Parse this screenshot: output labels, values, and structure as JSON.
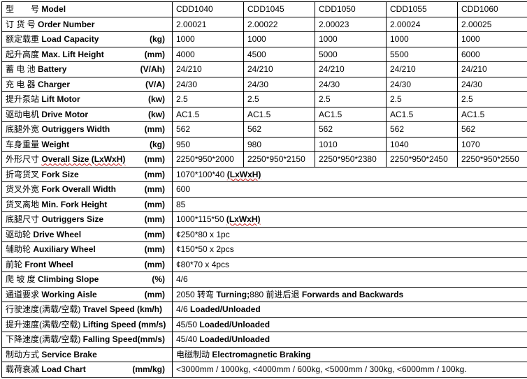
{
  "models_header": {
    "zh": "型　　号",
    "en": "Model",
    "values": [
      "CDD1040",
      "CDD1045",
      "CDD1050",
      "CDD1055",
      "CDD1060"
    ]
  },
  "rows_multi": [
    {
      "zh": "订 货 号",
      "en": "Order Number",
      "unit": "",
      "values": [
        "2.00021",
        "2.00022",
        "2.00023",
        "2.00024",
        "2.00025"
      ]
    },
    {
      "zh": "额定载重 ",
      "en": "Load Capacity",
      "unit": "(kg)",
      "values": [
        "1000",
        "1000",
        "1000",
        "1000",
        "1000"
      ]
    },
    {
      "zh": "起升高度",
      "en": "Max. Lift Height",
      "unit": "(mm)",
      "values": [
        "4000",
        "4500",
        "5000",
        "5500",
        "6000"
      ]
    },
    {
      "zh": "蓄 电 池",
      "en": "Battery",
      "unit": "(V/Ah)",
      "values": [
        "24/210",
        "24/210",
        "24/210",
        "24/210",
        "24/210"
      ]
    },
    {
      "zh": "充 电 器",
      "en": "Charger",
      "unit": "(V/A)",
      "values": [
        "24/30",
        "24/30",
        "24/30",
        "24/30",
        "24/30"
      ]
    },
    {
      "zh": "提升泵站",
      "en": "Lift Motor",
      "unit": "(kw)",
      "values": [
        "2.5",
        "2.5",
        "2.5",
        "2.5",
        "2.5"
      ]
    },
    {
      "zh": "驱动电机",
      "en": "Drive Motor",
      "unit": "(kw)",
      "values": [
        "AC1.5",
        "AC1.5",
        "AC1.5",
        "AC1.5",
        "AC1.5"
      ]
    },
    {
      "zh": "底腿外宽",
      "en": "Outriggers Width",
      "unit": "(mm)",
      "values": [
        "562",
        "562",
        "562",
        "562",
        "562"
      ]
    },
    {
      "zh": "车身重量",
      "en": "Weight",
      "unit": "(kg)",
      "values": [
        "950",
        "980",
        "1010",
        "1040",
        "1070"
      ]
    },
    {
      "zh": "外形尺寸",
      "en": "Overall Size (LxWxH)",
      "unit": "(mm)",
      "values": [
        "2250*950*2000",
        "2250*950*2150",
        "2250*950*2380",
        "2250*950*2450",
        "2250*950*2550"
      ]
    }
  ],
  "rows_single": [
    {
      "zh": "折弯货叉",
      "en": "Fork  Size",
      "unit": "(mm)",
      "value": "1070*100*40",
      "value_en": "(LxWxH)"
    },
    {
      "zh": "货叉外宽",
      "en": "Fork Overall Width",
      "unit": "(mm)",
      "value": "600",
      "value_en": ""
    },
    {
      "zh": "货叉离地",
      "en": "Min. Fork Height",
      "unit": "(mm)",
      "value": "85",
      "value_en": ""
    },
    {
      "zh": "底腿尺寸 ",
      "en": "Outriggers Size",
      "unit": "(mm)",
      "value": "1000*115*50",
      "value_en": "(LxWxH)"
    },
    {
      "zh": "驱动轮 ",
      "en": "Drive Wheel",
      "unit": "(mm)",
      "value": "¢250*80 x 1pc",
      "value_en": ""
    },
    {
      "zh": "辅助轮 ",
      "en": "Auxiliary Wheel",
      "unit": "(mm)",
      "value": "¢150*50 x 2pcs",
      "value_en": ""
    },
    {
      "zh": "前轮",
      "en": "Front Wheel",
      "unit": "(mm)",
      "value": "¢80*70 x 4pcs",
      "value_en": ""
    },
    {
      "zh": "爬 坡 度 ",
      "en": "Climbing  Slope",
      "unit": "(%)",
      "value": "4/6",
      "value_en": ""
    },
    {
      "zh": "通道要求 ",
      "en": "Working Aisle",
      "unit": "(mm)",
      "value": "2050 转弯",
      "value_en": "Turning;",
      "value2": "880 前进后退",
      "value2_en": "Forwards and Backwards"
    },
    {
      "zh": "行驶速度(满载/空载)",
      "en": "Travel Speed (km/h)",
      "unit": "",
      "value": "4/6",
      "value_en": "Loaded/Unloaded"
    },
    {
      "zh": "提升速度(满载/空载)",
      "en": "Lifting  Speed (mm/s)",
      "unit": "",
      "value": "45/50",
      "value_en": "Loaded/Unloaded"
    },
    {
      "zh": "下降速度(满载/空载)",
      "en": "Falling  Speed(mm/s)",
      "unit": "",
      "value": "45/40",
      "value_en": "Loaded/Unloaded"
    },
    {
      "zh": "制动方式",
      "en": "Service Brake",
      "unit": "",
      "value": "电磁制动",
      "value_en": "Electromagnetic  Braking"
    },
    {
      "zh": "载荷衰减",
      "en": "Load Chart",
      "unit": "(mm/kg)",
      "value": "<3000mm / 1000kg,    <4000mm / 600kg, <5000mm / 300kg, <6000mm / 100kg.",
      "value_en": ""
    }
  ]
}
